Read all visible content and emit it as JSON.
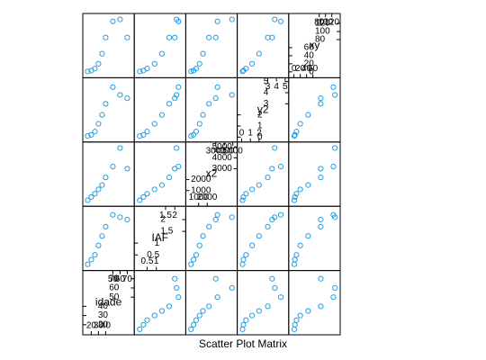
{
  "chart_data": {
    "type": "splom",
    "title": "Scatter Plot Matrix",
    "color": "#1f9ee8",
    "variables": [
      {
        "name": "idade",
        "values": [
          15,
          20,
          25,
          30,
          35,
          40,
          50,
          60,
          70
        ],
        "lim": [
          12,
          76
        ],
        "ticks": [
          20,
          30,
          40,
          50,
          60,
          70
        ]
      },
      {
        "name": "IAF",
        "values": [
          0.1,
          0.3,
          0.5,
          0.9,
          1.3,
          1.7,
          2.2,
          2.1,
          2.0
        ],
        "lim": [
          -0.05,
          2.45
        ],
        "ticks": [
          0.5,
          1.0,
          1.5,
          2.0
        ]
      },
      {
        "name": "x2",
        "values": [
          100,
          400,
          700,
          1100,
          1500,
          2200,
          3200,
          4900,
          3000
        ],
        "lim": [
          -200,
          5200
        ],
        "ticks": [
          1000,
          2000,
          3000,
          4000,
          5000
        ]
      },
      {
        "name": "y2",
        "values": [
          0.1,
          0.2,
          0.5,
          1.2,
          2.0,
          3.0,
          4.5,
          3.8,
          3.5
        ],
        "lim": [
          -0.2,
          5.1
        ],
        "ticks": [
          0,
          1,
          2,
          3,
          4,
          5
        ]
      },
      {
        "name": "xy",
        "values": [
          1,
          3,
          8,
          20,
          45,
          85,
          125,
          130,
          85
        ],
        "lim": [
          -8,
          138
        ],
        "ticks": [
          0,
          20,
          40,
          60,
          80,
          100,
          120
        ]
      }
    ]
  }
}
